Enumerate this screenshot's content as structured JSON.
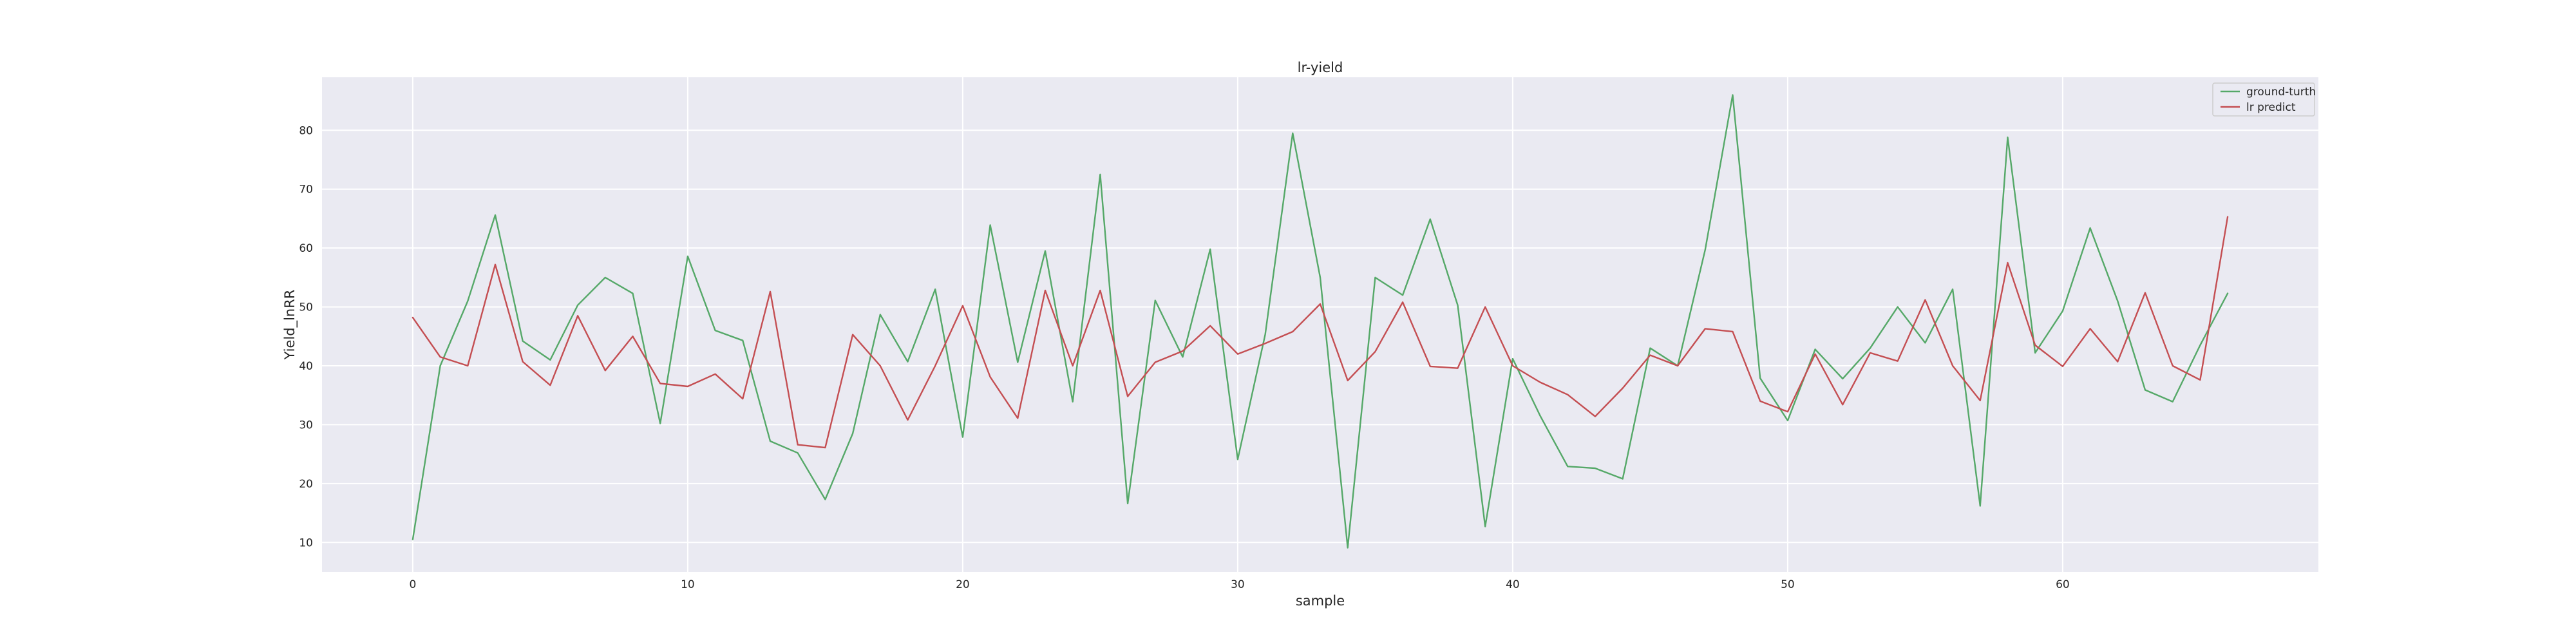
{
  "chart_data": {
    "type": "line",
    "title": "lr-yield",
    "xlabel": "sample",
    "ylabel": "Yield_lnRR",
    "xlim": [
      -3.3,
      69.3
    ],
    "ylim": [
      5.0,
      89.0
    ],
    "xticks": [
      0,
      10,
      20,
      30,
      40,
      50,
      60
    ],
    "yticks": [
      10,
      20,
      30,
      40,
      50,
      60,
      70,
      80
    ],
    "grid": true,
    "legend_position": "top-right",
    "x": [
      0,
      1,
      2,
      3,
      4,
      5,
      6,
      7,
      8,
      9,
      10,
      11,
      12,
      13,
      14,
      15,
      16,
      17,
      18,
      19,
      20,
      21,
      22,
      23,
      24,
      25,
      26,
      27,
      28,
      29,
      30,
      31,
      32,
      33,
      34,
      35,
      36,
      37,
      38,
      39,
      40,
      41,
      42,
      43,
      44,
      45,
      46,
      47,
      48,
      49,
      50,
      51,
      52,
      53,
      54,
      55,
      56,
      57,
      58,
      59,
      60,
      61,
      62,
      63,
      64,
      65,
      66
    ],
    "series": [
      {
        "name": "ground-turth",
        "color": "#55a868",
        "values": [
          10.5,
          40.0,
          51.0,
          65.6,
          44.2,
          41.0,
          50.3,
          55.0,
          52.3,
          30.2,
          58.6,
          46.0,
          44.3,
          27.2,
          25.2,
          17.3,
          28.5,
          48.7,
          40.7,
          53.0,
          27.9,
          63.9,
          40.6,
          59.5,
          33.9,
          72.5,
          16.6,
          51.1,
          41.5,
          59.8,
          24.1,
          45.3,
          79.5,
          55.0,
          9.1,
          55.0,
          52.0,
          64.9,
          50.3,
          12.7,
          41.2,
          31.5,
          22.9,
          22.6,
          20.8,
          43.0,
          40.0,
          59.7,
          86.0,
          37.9,
          30.7,
          42.8,
          37.8,
          43.0,
          50.0,
          43.9,
          53.0,
          16.2,
          78.8,
          42.2,
          49.3,
          63.4,
          51.0,
          35.9,
          33.9,
          43.5,
          52.3
        ]
      },
      {
        "name": "lr predict",
        "color": "#c44e52",
        "values": [
          48.2,
          41.5,
          40.0,
          57.2,
          40.7,
          36.7,
          48.5,
          39.2,
          45.0,
          37.0,
          36.5,
          38.6,
          34.4,
          52.6,
          26.6,
          26.1,
          45.3,
          40.0,
          30.8,
          40.0,
          50.2,
          38.1,
          31.1,
          52.8,
          40.0,
          52.8,
          34.8,
          40.6,
          42.5,
          46.8,
          42.0,
          43.8,
          45.8,
          50.5,
          37.5,
          42.4,
          50.8,
          39.9,
          39.6,
          50.0,
          40.0,
          37.2,
          35.1,
          31.4,
          36.2,
          41.8,
          40.0,
          46.3,
          45.8,
          34.0,
          32.2,
          42.0,
          33.4,
          42.2,
          40.8,
          51.2,
          40.0,
          34.1,
          57.5,
          43.5,
          39.9,
          46.3,
          40.7,
          52.4,
          40.0,
          37.6,
          65.3
        ]
      }
    ]
  }
}
